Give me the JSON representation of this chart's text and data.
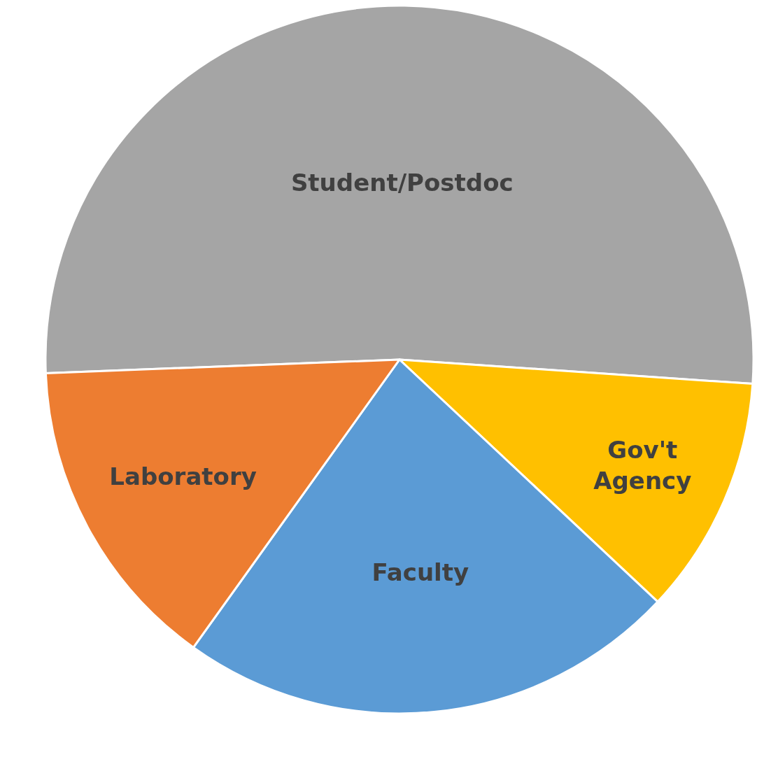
{
  "chart_data": {
    "type": "pie",
    "categories": [
      "Student/Postdoc",
      "Gov't Agency",
      "Faculty",
      "Laboratory"
    ],
    "values": [
      51.7,
      10.9,
      22.9,
      14.5
    ],
    "colors": [
      "#a5a5a5",
      "#ffc000",
      "#5b9bd5",
      "#ed7d31"
    ],
    "legend": false
  }
}
